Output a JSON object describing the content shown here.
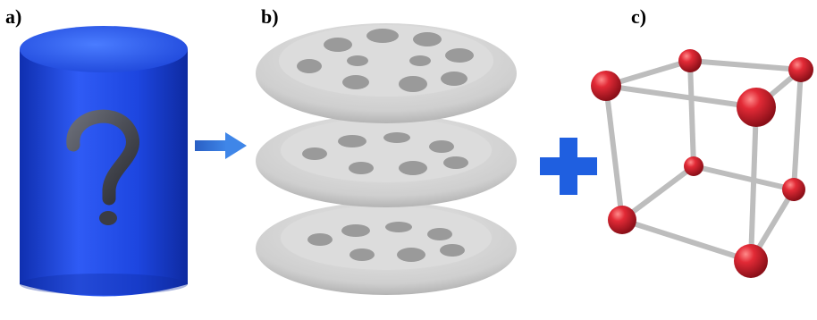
{
  "labels": {
    "a": "a)",
    "b": "b)",
    "c": "c)"
  },
  "panels": {
    "a": {
      "object": "blue-cylinder",
      "symbol": "question-mark"
    },
    "b": {
      "object": "stacked-porous-discs",
      "count": 3
    },
    "c": {
      "object": "cubic-lattice",
      "node_color": "#d81f2a"
    }
  },
  "operators": {
    "arrow": "arrow-right",
    "plus": "plus"
  },
  "colors": {
    "cylinder": "#1f4fe0",
    "operator": "#2f6fd6",
    "plus": "#1f5fe0",
    "disc": "#c9c9c9",
    "rod": "#bdbdbd"
  }
}
